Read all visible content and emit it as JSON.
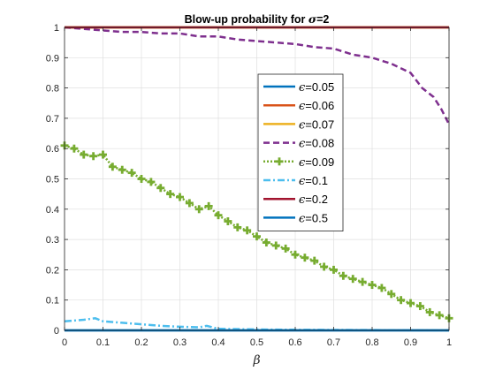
{
  "chart_data": {
    "type": "line",
    "title_prefix": "Blow-up probability for ",
    "title_symbol": "σ",
    "title_suffix": "=2",
    "xlabel": "β",
    "ylabel": "",
    "xlim": [
      0,
      1
    ],
    "ylim": [
      0,
      1
    ],
    "xticks": [
      0,
      0.1,
      0.2,
      0.3,
      0.4,
      0.5,
      0.6,
      0.7,
      0.8,
      0.9,
      1
    ],
    "xtick_labels": [
      "0",
      "0.1",
      "0.2",
      "0.3",
      "0.4",
      "0.5",
      "0.6",
      "0.7",
      "0.8",
      "0.9",
      "1"
    ],
    "yticks": [
      0,
      0.1,
      0.2,
      0.3,
      0.4,
      0.5,
      0.6,
      0.7,
      0.8,
      0.9,
      1
    ],
    "ytick_labels": [
      "0",
      "0.1",
      "0.2",
      "0.3",
      "0.4",
      "0.5",
      "0.6",
      "0.7",
      "0.8",
      "0.9",
      "1"
    ],
    "grid": true,
    "legend_position": "center-right",
    "legend_symbol": "ϵ",
    "series": [
      {
        "name": "=0.05",
        "color": "#0072BD",
        "style": "solid",
        "x": [
          0,
          0.5,
          1
        ],
        "y": [
          0,
          0,
          0
        ]
      },
      {
        "name": "=0.06",
        "color": "#D95319",
        "style": "solid",
        "x": [
          0,
          0.5,
          1
        ],
        "y": [
          1,
          1,
          1
        ]
      },
      {
        "name": "=0.07",
        "color": "#EDB120",
        "style": "solid",
        "x": [
          0,
          0.5,
          1
        ],
        "y": [
          1,
          1,
          1
        ]
      },
      {
        "name": "=0.08",
        "color": "#7E2F8E",
        "style": "dashed",
        "x": [
          0,
          0.05,
          0.1,
          0.15,
          0.2,
          0.25,
          0.3,
          0.35,
          0.4,
          0.45,
          0.5,
          0.55,
          0.6,
          0.65,
          0.7,
          0.75,
          0.8,
          0.85,
          0.9,
          0.93,
          0.96,
          0.98,
          1.0
        ],
        "y": [
          1.0,
          0.995,
          0.99,
          0.985,
          0.985,
          0.98,
          0.98,
          0.97,
          0.97,
          0.96,
          0.955,
          0.95,
          0.945,
          0.935,
          0.93,
          0.91,
          0.9,
          0.88,
          0.85,
          0.8,
          0.77,
          0.73,
          0.68
        ]
      },
      {
        "name": "=0.09",
        "color": "#77AC30",
        "style": "dotted-plus",
        "x": [
          0,
          0.025,
          0.05,
          0.075,
          0.1,
          0.125,
          0.15,
          0.175,
          0.2,
          0.225,
          0.25,
          0.275,
          0.3,
          0.325,
          0.35,
          0.375,
          0.4,
          0.425,
          0.45,
          0.475,
          0.5,
          0.525,
          0.55,
          0.575,
          0.6,
          0.625,
          0.65,
          0.675,
          0.7,
          0.725,
          0.75,
          0.775,
          0.8,
          0.825,
          0.85,
          0.875,
          0.9,
          0.925,
          0.95,
          0.975,
          1.0
        ],
        "y": [
          0.61,
          0.6,
          0.58,
          0.575,
          0.58,
          0.54,
          0.53,
          0.52,
          0.5,
          0.49,
          0.47,
          0.45,
          0.44,
          0.42,
          0.4,
          0.41,
          0.38,
          0.36,
          0.34,
          0.33,
          0.31,
          0.29,
          0.28,
          0.27,
          0.25,
          0.24,
          0.23,
          0.21,
          0.2,
          0.18,
          0.17,
          0.16,
          0.15,
          0.14,
          0.12,
          0.1,
          0.09,
          0.08,
          0.06,
          0.05,
          0.04
        ]
      },
      {
        "name": "=0.1",
        "color": "#4DBEEE",
        "style": "dashdot",
        "x": [
          0,
          0.05,
          0.08,
          0.1,
          0.15,
          0.2,
          0.25,
          0.3,
          0.35,
          0.37,
          0.4,
          0.5,
          0.6,
          0.8,
          1.0
        ],
        "y": [
          0.03,
          0.035,
          0.04,
          0.03,
          0.025,
          0.02,
          0.015,
          0.012,
          0.01,
          0.015,
          0.005,
          0.003,
          0.002,
          0.001,
          0.0
        ]
      },
      {
        "name": "=0.2",
        "color": "#A2142F",
        "style": "solid",
        "x": [
          0,
          0.5,
          1
        ],
        "y": [
          1,
          1,
          1
        ]
      },
      {
        "name": "=0.5",
        "color": "#0072BD",
        "style": "solid",
        "x": [
          0,
          0.5,
          1
        ],
        "y": [
          0,
          0,
          0
        ]
      }
    ]
  }
}
